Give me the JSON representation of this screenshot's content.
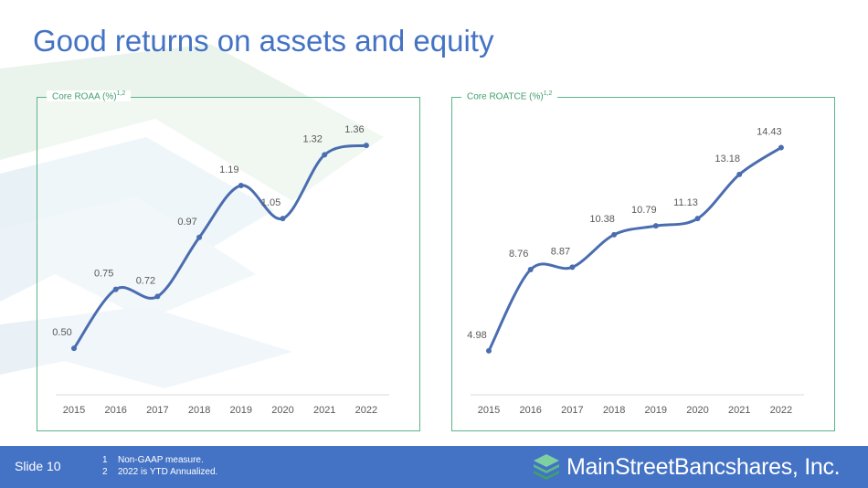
{
  "title": "Good returns on assets and equity",
  "colors": {
    "title": "#4472c4",
    "line": "#4a6db0",
    "frame": "#5bb38a",
    "label": "#3e9e6e",
    "footer": "#4472c4"
  },
  "chart_data": [
    {
      "type": "line",
      "title": "Core ROAA (%)",
      "title_sup": "1,2",
      "categories": [
        "2015",
        "2016",
        "2017",
        "2018",
        "2019",
        "2020",
        "2021",
        "2022"
      ],
      "values": [
        0.5,
        0.75,
        0.72,
        0.97,
        1.19,
        1.05,
        1.32,
        1.36
      ],
      "labels": [
        "0.50",
        "0.75",
        "0.72",
        "0.97",
        "1.19",
        "1.05",
        "1.32",
        "1.36"
      ],
      "ylim": [
        0.4,
        1.43
      ],
      "grid": false,
      "smooth": true
    },
    {
      "type": "line",
      "title": "Core ROATCE (%)",
      "title_sup": "1,2",
      "categories": [
        "2015",
        "2016",
        "2017",
        "2018",
        "2019",
        "2020",
        "2021",
        "2022"
      ],
      "values": [
        4.98,
        8.76,
        8.87,
        10.38,
        10.79,
        11.13,
        13.18,
        14.43
      ],
      "labels": [
        "4.98",
        "8.76",
        "8.87",
        "10.38",
        "10.79",
        "11.13",
        "13.18",
        "14.43"
      ],
      "ylim": [
        4.0,
        15.3
      ],
      "grid": false,
      "smooth": true
    }
  ],
  "footer": {
    "slide": "Slide 10",
    "notes": [
      {
        "num": "1",
        "text": "Non-GAAP measure."
      },
      {
        "num": "2",
        "text": "2022 is YTD Annualized."
      }
    ],
    "logo_text": "MainStreetBancshares, Inc.",
    "logo_icon": "stacked-layers-icon"
  }
}
